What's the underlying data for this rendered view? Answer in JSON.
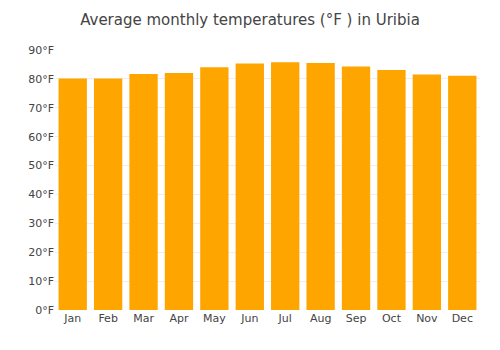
{
  "chart_data": {
    "type": "bar",
    "title": "Average monthly temperatures (°F ) in Uribia",
    "categories": [
      "Jan",
      "Feb",
      "Mar",
      "Apr",
      "May",
      "Jun",
      "Jul",
      "Aug",
      "Sep",
      "Oct",
      "Nov",
      "Dec"
    ],
    "values": [
      80.1,
      80.1,
      81.7,
      82.0,
      84.0,
      85.3,
      85.8,
      85.5,
      84.3,
      83.1,
      81.5,
      81.1
    ],
    "color": "#FFA500",
    "ylim": [
      0,
      90
    ],
    "yticks": [
      {
        "value": 0,
        "label": "0°F"
      },
      {
        "value": 10,
        "label": "10°F"
      },
      {
        "value": 20,
        "label": "20°F"
      },
      {
        "value": 30,
        "label": "30°F"
      },
      {
        "value": 40,
        "label": "40°F"
      },
      {
        "value": 50,
        "label": "50°F"
      },
      {
        "value": 60,
        "label": "60°F"
      },
      {
        "value": 70,
        "label": "70°F"
      },
      {
        "value": 80,
        "label": "80°F"
      },
      {
        "value": 90,
        "label": "90°F"
      }
    ],
    "grid": true
  }
}
